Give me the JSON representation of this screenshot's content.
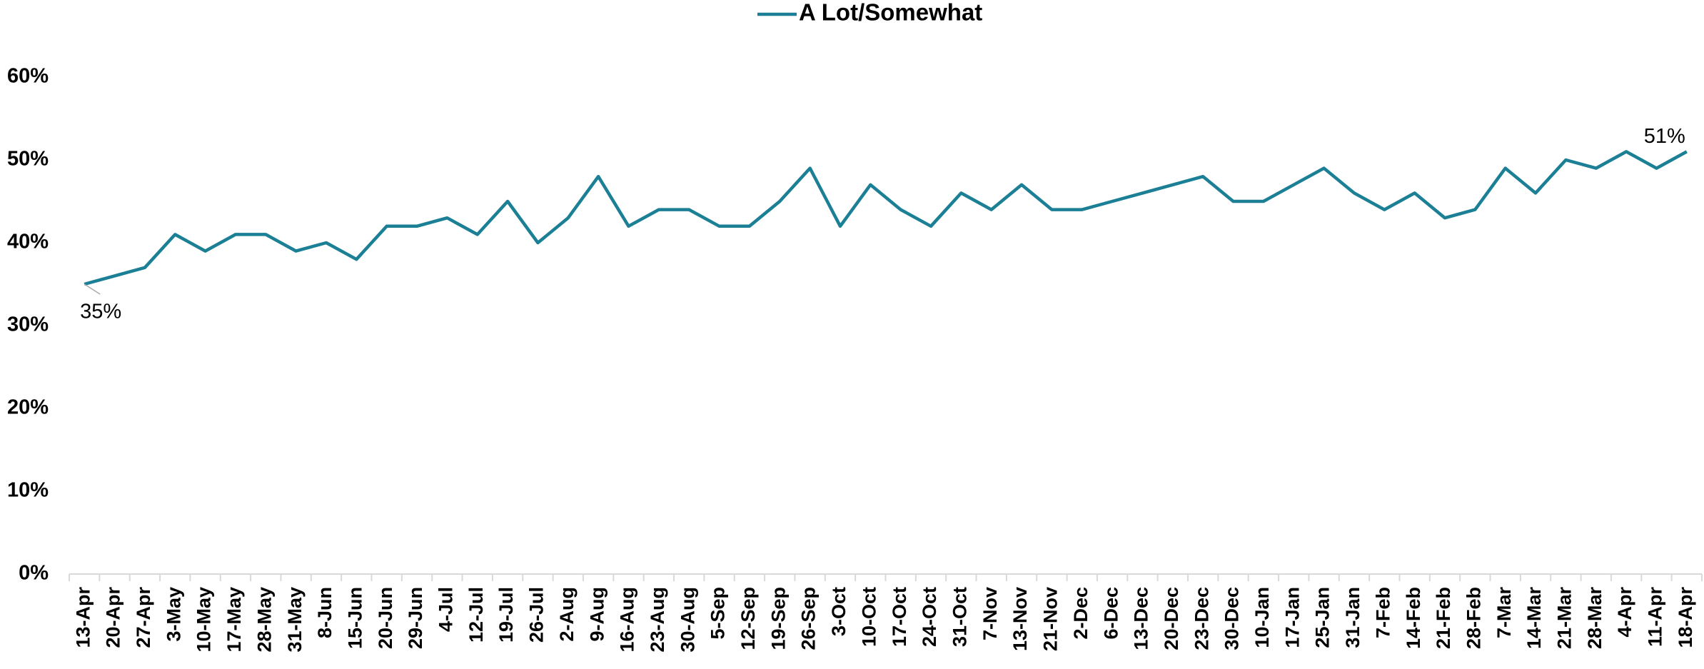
{
  "chart_data": {
    "type": "line",
    "categories": [
      "13-Apr",
      "20-Apr",
      "27-Apr",
      "3-May",
      "10-May",
      "17-May",
      "28-May",
      "31-May",
      "8-Jun",
      "15-Jun",
      "20-Jun",
      "29-Jun",
      "4-Jul",
      "12-Jul",
      "19-Jul",
      "26-Jul",
      "2-Aug",
      "9-Aug",
      "16-Aug",
      "23-Aug",
      "30-Aug",
      "5-Sep",
      "12-Sep",
      "19-Sep",
      "26-Sep",
      "3-Oct",
      "10-Oct",
      "17-Oct",
      "24-Oct",
      "31-Oct",
      "7-Nov",
      "13-Nov",
      "21-Nov",
      "2-Dec",
      "6-Dec",
      "13-Dec",
      "20-Dec",
      "23-Dec",
      "30-Dec",
      "10-Jan",
      "17-Jan",
      "25-Jan",
      "31-Jan",
      "7-Feb",
      "14-Feb",
      "21-Feb",
      "28-Feb",
      "7-Mar",
      "14-Mar",
      "21-Mar",
      "28-Mar",
      "4-Apr",
      "11-Apr",
      "18-Apr"
    ],
    "series": [
      {
        "name": "A Lot/Somewhat",
        "color": "#1b7f95",
        "values": [
          35,
          36,
          37,
          41,
          39,
          41,
          41,
          39,
          40,
          38,
          42,
          42,
          43,
          41,
          45,
          40,
          43,
          48,
          42,
          44,
          44,
          42,
          42,
          45,
          49,
          42,
          47,
          44,
          42,
          46,
          44,
          47,
          44,
          44,
          45,
          46,
          47,
          48,
          45,
          45,
          47,
          49,
          46,
          44,
          46,
          43,
          44,
          49,
          46,
          50,
          49,
          51,
          49,
          51
        ],
        "value_labels": [
          "35%",
          null,
          null,
          null,
          null,
          null,
          null,
          null,
          null,
          null,
          null,
          null,
          null,
          null,
          null,
          null,
          null,
          null,
          null,
          null,
          null,
          null,
          null,
          null,
          null,
          null,
          null,
          null,
          null,
          null,
          null,
          null,
          null,
          null,
          null,
          null,
          null,
          null,
          null,
          null,
          null,
          null,
          null,
          null,
          null,
          null,
          null,
          null,
          null,
          null,
          null,
          null,
          null,
          "51%"
        ]
      }
    ],
    "ylim": [
      0,
      60
    ],
    "yticks": [
      {
        "value": 0,
        "label": "0%"
      },
      {
        "value": 10,
        "label": "10%"
      },
      {
        "value": 20,
        "label": "20%"
      },
      {
        "value": 30,
        "label": "30%"
      },
      {
        "value": 40,
        "label": "40%"
      },
      {
        "value": 50,
        "label": "50%"
      },
      {
        "value": 60,
        "label": "60%"
      }
    ],
    "grid": false,
    "legend": "top"
  }
}
